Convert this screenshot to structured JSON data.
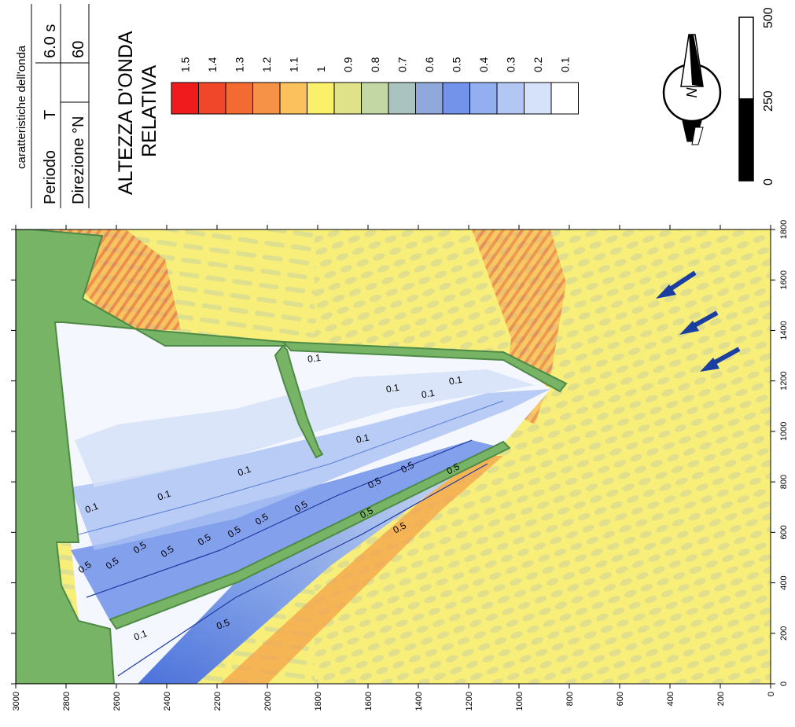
{
  "info_table": {
    "header": "caratteristiche dell'onda",
    "rows": [
      {
        "label": "Periodo",
        "symbol": "T",
        "value": "6.0 s"
      },
      {
        "label": "Direzione °N",
        "symbol": "",
        "value": "60"
      }
    ]
  },
  "title_line1": "ALTEZZA D'ONDA",
  "title_line2": "RELATIVA",
  "legend": {
    "labels": [
      "1.5",
      "1.4",
      "1.3",
      "1.2",
      "1.1",
      "1",
      "0.9",
      "0.8",
      "0.7",
      "0.6",
      "0.5",
      "0.4",
      "0.3",
      "0.2",
      "0.1"
    ],
    "colors": [
      "#ee1c1c",
      "#f0462a",
      "#f36a32",
      "#f59248",
      "#fbc15c",
      "#fbf06a",
      "#e0e28a",
      "#c3d7a5",
      "#aac3c0",
      "#8fa9dc",
      "#7393eb",
      "#93aff0",
      "#b3c7f5",
      "#d6e2fa",
      "#ffffff"
    ]
  },
  "compass": {
    "label": "N"
  },
  "scalebar": {
    "labels": [
      "0",
      "250",
      "500"
    ]
  },
  "x_ticks": [
    "0",
    "200",
    "400",
    "600",
    "800",
    "1000",
    "1200",
    "1400",
    "1600",
    "1800"
  ],
  "y_ticks": [
    "0",
    "200",
    "400",
    "600",
    "800",
    "1000",
    "1200",
    "1400",
    "1600",
    "1800",
    "2000",
    "2200",
    "2400",
    "2600",
    "2800",
    "3000"
  ],
  "contour_labels": [
    "0.1",
    "0.1",
    "0.1",
    "0.1",
    "0.1",
    "0.1",
    "0.1",
    "0.1",
    "0.1",
    "0.5",
    "0.5",
    "0.5",
    "0.5",
    "0.5",
    "0.5",
    "0.5",
    "0.5",
    "0.5",
    "0.5",
    "0.5",
    "0.5",
    "0.5",
    "0.5"
  ],
  "colors": {
    "land": "#77b465",
    "land_edge": "#4e8a46",
    "sea": "#f7f07c",
    "arrow": "#1a3fa0"
  }
}
